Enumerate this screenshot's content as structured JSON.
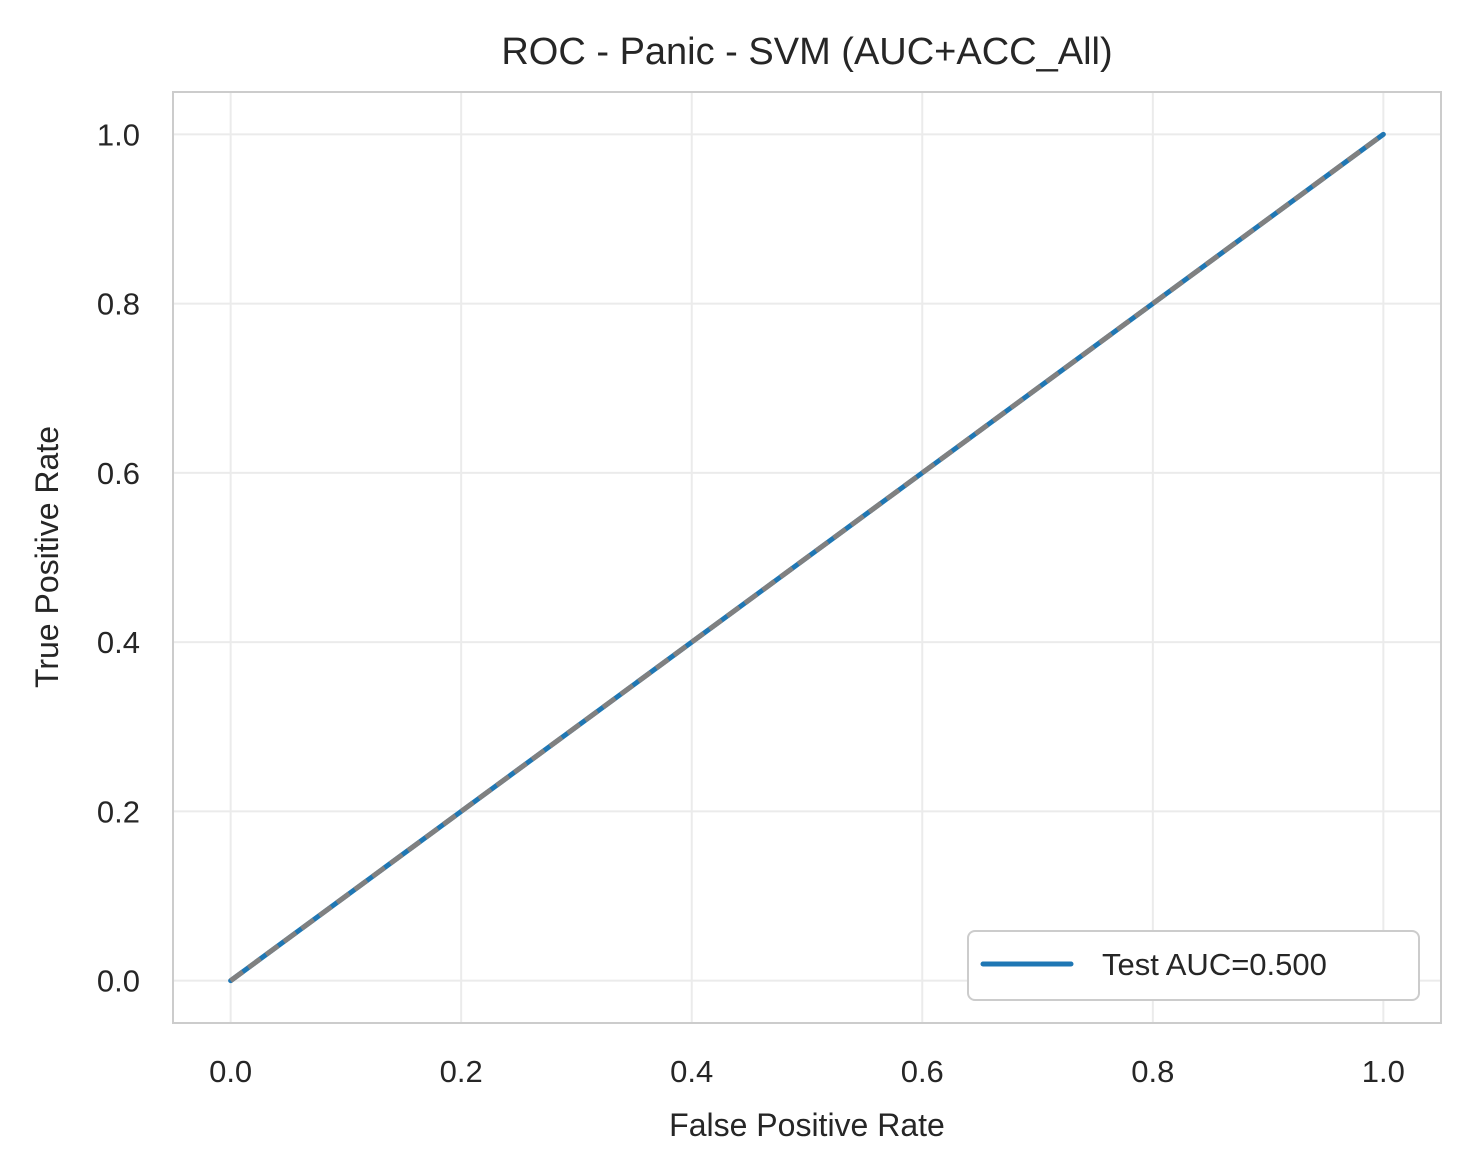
{
  "chart_data": {
    "type": "line",
    "title": "ROC - Panic - SVM (AUC+ACC_All)",
    "xlabel": "False Positive Rate",
    "ylabel": "True Positive Rate",
    "xlim": [
      -0.05,
      1.05
    ],
    "ylim": [
      -0.05,
      1.05
    ],
    "xticks": [
      0.0,
      0.2,
      0.4,
      0.6,
      0.8,
      1.0
    ],
    "yticks": [
      0.0,
      0.2,
      0.4,
      0.6,
      0.8,
      1.0
    ],
    "xtick_labels": [
      "0.0",
      "0.2",
      "0.4",
      "0.6",
      "0.8",
      "1.0"
    ],
    "ytick_labels": [
      "0.0",
      "0.2",
      "0.4",
      "0.6",
      "0.8",
      "1.0"
    ],
    "grid": true,
    "legend_position": "lower-right",
    "series": [
      {
        "name": "Test AUC=0.500",
        "x": [
          0.0,
          1.0
        ],
        "y": [
          0.0,
          1.0
        ],
        "color": "#1f77b4",
        "style": "solid"
      }
    ],
    "reference_line": {
      "x": [
        0.0,
        1.0
      ],
      "y": [
        0.0,
        1.0
      ],
      "color": "#808080",
      "style": "dashed"
    }
  }
}
